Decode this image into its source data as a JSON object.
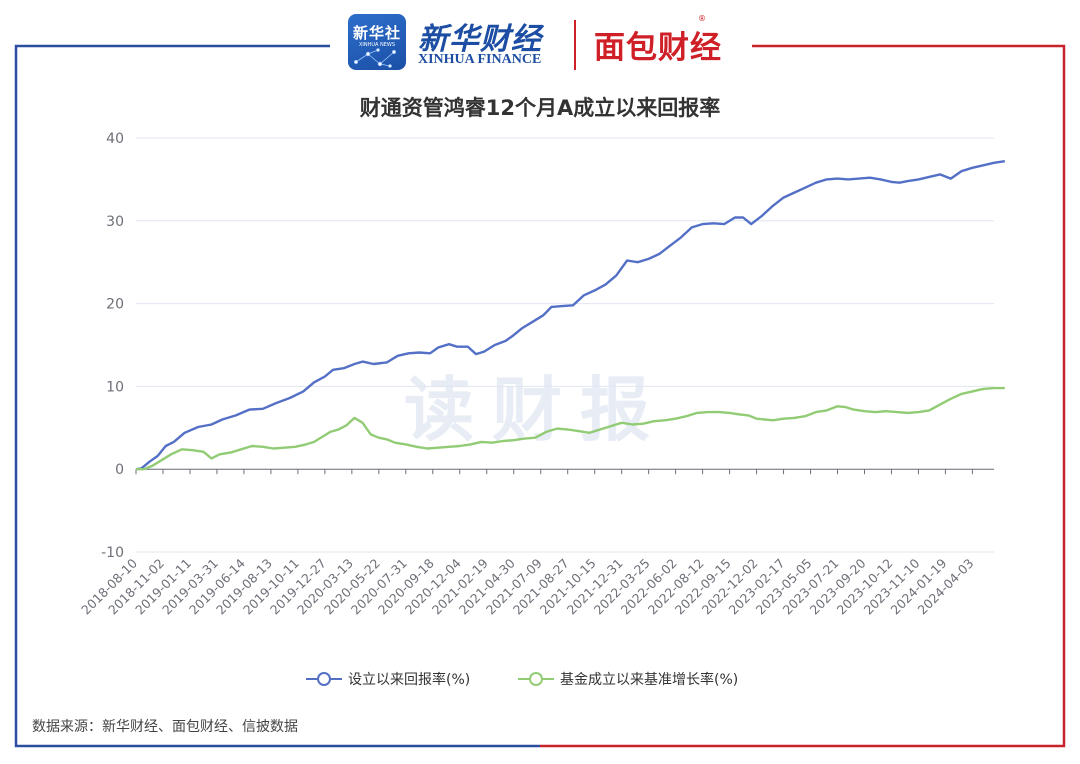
{
  "header": {
    "xinhua_badge_text": "新华社",
    "xinhua_badge_sub": "XINHUA NEWS",
    "xinhua_finance_cn": "新华财经",
    "xinhua_finance_en": "XINHUA FINANCE",
    "mianbao_logo": "面包财经"
  },
  "watermark": "读财报",
  "source": "数据来源：新华财经、面包财经、信披数据",
  "colors": {
    "left_border": "#2b4ea0",
    "right_border": "#c8222b",
    "series1": "#5470c6",
    "series2": "#91cc75"
  },
  "chart_data": {
    "type": "line",
    "title": "财通资管鸿睿12个月A成立以来回报率",
    "xlabel": "",
    "ylabel": "",
    "ylim": [
      -10,
      40
    ],
    "yticks": [
      -10,
      0,
      10,
      20,
      30,
      40
    ],
    "grid": true,
    "legend_position": "bottom-center",
    "x_tick_labels": [
      "2018-08-10",
      "2018-11-02",
      "2019-01-11",
      "2019-03-31",
      "2019-06-14",
      "2019-08-13",
      "2019-10-11",
      "2019-12-27",
      "2020-03-13",
      "2020-05-22",
      "2020-07-31",
      "2020-09-18",
      "2020-12-04",
      "2021-02-19",
      "2021-04-30",
      "2021-07-09",
      "2021-08-27",
      "2021-10-15",
      "2021-12-31",
      "2022-03-25",
      "2022-06-02",
      "2022-08-12",
      "2022-09-15",
      "2022-12-02",
      "2023-02-17",
      "2023-05-05",
      "2023-07-21",
      "2023-09-20",
      "2023-10-12",
      "2023-11-10",
      "2024-01-19",
      "2024-04-03"
    ],
    "series": [
      {
        "name": "设立以来回报率(%)",
        "values": [
          [
            0,
            0
          ],
          [
            0.2,
            0.1
          ],
          [
            0.5,
            0.9
          ],
          [
            0.8,
            1.6
          ],
          [
            1.1,
            2.8
          ],
          [
            1.4,
            3.3
          ],
          [
            1.8,
            4.4
          ],
          [
            2.3,
            5.1
          ],
          [
            2.8,
            5.4
          ],
          [
            3.2,
            6.0
          ],
          [
            3.7,
            6.5
          ],
          [
            4.2,
            7.2
          ],
          [
            4.7,
            7.3
          ],
          [
            5.2,
            8.0
          ],
          [
            5.7,
            8.6
          ],
          [
            6.2,
            9.4
          ],
          [
            6.6,
            10.5
          ],
          [
            7.0,
            11.2
          ],
          [
            7.3,
            12.0
          ],
          [
            7.7,
            12.2
          ],
          [
            8.1,
            12.7
          ],
          [
            8.4,
            13.0
          ],
          [
            8.8,
            12.7
          ],
          [
            9.3,
            12.9
          ],
          [
            9.7,
            13.7
          ],
          [
            10.1,
            14.0
          ],
          [
            10.5,
            14.1
          ],
          [
            10.9,
            14.0
          ],
          [
            11.2,
            14.7
          ],
          [
            11.6,
            15.1
          ],
          [
            11.9,
            14.8
          ],
          [
            12.3,
            14.8
          ],
          [
            12.6,
            13.9
          ],
          [
            12.9,
            14.2
          ],
          [
            13.3,
            15.0
          ],
          [
            13.7,
            15.5
          ],
          [
            14.0,
            16.2
          ],
          [
            14.3,
            17.0
          ],
          [
            14.7,
            17.8
          ],
          [
            15.1,
            18.6
          ],
          [
            15.4,
            19.6
          ],
          [
            15.8,
            19.7
          ],
          [
            16.2,
            19.8
          ],
          [
            16.6,
            21.0
          ],
          [
            17.0,
            21.6
          ],
          [
            17.4,
            22.3
          ],
          [
            17.8,
            23.4
          ],
          [
            18.2,
            25.2
          ],
          [
            18.6,
            25.0
          ],
          [
            19.0,
            25.4
          ],
          [
            19.4,
            26.0
          ],
          [
            19.8,
            27.0
          ],
          [
            20.2,
            28.0
          ],
          [
            20.6,
            29.2
          ],
          [
            21.0,
            29.6
          ],
          [
            21.4,
            29.7
          ],
          [
            21.8,
            29.6
          ],
          [
            22.2,
            30.4
          ],
          [
            22.5,
            30.4
          ],
          [
            22.8,
            29.6
          ],
          [
            23.2,
            30.6
          ],
          [
            23.6,
            31.8
          ],
          [
            24.0,
            32.8
          ],
          [
            24.4,
            33.4
          ],
          [
            24.8,
            34.0
          ],
          [
            25.2,
            34.6
          ],
          [
            25.6,
            35.0
          ],
          [
            26.0,
            35.1
          ],
          [
            26.4,
            35.0
          ],
          [
            26.8,
            35.1
          ],
          [
            27.2,
            35.2
          ],
          [
            27.6,
            35.0
          ],
          [
            28.0,
            34.7
          ],
          [
            28.3,
            34.6
          ],
          [
            28.6,
            34.8
          ],
          [
            29.0,
            35.0
          ],
          [
            29.4,
            35.3
          ],
          [
            29.8,
            35.6
          ],
          [
            30.2,
            35.1
          ],
          [
            30.6,
            36.0
          ],
          [
            31.0,
            36.4
          ],
          [
            31.4,
            36.7
          ],
          [
            31.8,
            37.0
          ],
          [
            32.2,
            37.2
          ]
        ]
      },
      {
        "name": "基金成立以来基准增长率(%)",
        "values": [
          [
            0,
            0
          ],
          [
            0.3,
            0
          ],
          [
            0.6,
            0.4
          ],
          [
            1.0,
            1.2
          ],
          [
            1.3,
            1.8
          ],
          [
            1.7,
            2.4
          ],
          [
            2.1,
            2.3
          ],
          [
            2.5,
            2.1
          ],
          [
            2.8,
            1.3
          ],
          [
            3.1,
            1.8
          ],
          [
            3.5,
            2.0
          ],
          [
            3.9,
            2.4
          ],
          [
            4.3,
            2.8
          ],
          [
            4.7,
            2.7
          ],
          [
            5.1,
            2.5
          ],
          [
            5.5,
            2.6
          ],
          [
            5.9,
            2.7
          ],
          [
            6.3,
            3.0
          ],
          [
            6.6,
            3.3
          ],
          [
            6.9,
            3.9
          ],
          [
            7.2,
            4.5
          ],
          [
            7.5,
            4.8
          ],
          [
            7.8,
            5.3
          ],
          [
            8.1,
            6.2
          ],
          [
            8.4,
            5.6
          ],
          [
            8.7,
            4.2
          ],
          [
            9.0,
            3.8
          ],
          [
            9.3,
            3.6
          ],
          [
            9.6,
            3.2
          ],
          [
            10.0,
            3.0
          ],
          [
            10.4,
            2.7
          ],
          [
            10.8,
            2.5
          ],
          [
            11.2,
            2.6
          ],
          [
            11.6,
            2.7
          ],
          [
            12.0,
            2.8
          ],
          [
            12.4,
            3.0
          ],
          [
            12.8,
            3.3
          ],
          [
            13.2,
            3.2
          ],
          [
            13.6,
            3.4
          ],
          [
            14.0,
            3.5
          ],
          [
            14.4,
            3.7
          ],
          [
            14.8,
            3.8
          ],
          [
            15.2,
            4.5
          ],
          [
            15.6,
            4.9
          ],
          [
            16.0,
            4.8
          ],
          [
            16.4,
            4.6
          ],
          [
            16.8,
            4.4
          ],
          [
            17.2,
            4.8
          ],
          [
            17.6,
            5.2
          ],
          [
            18.0,
            5.6
          ],
          [
            18.4,
            5.4
          ],
          [
            18.8,
            5.5
          ],
          [
            19.2,
            5.8
          ],
          [
            19.6,
            5.9
          ],
          [
            20.0,
            6.1
          ],
          [
            20.4,
            6.4
          ],
          [
            20.8,
            6.8
          ],
          [
            21.2,
            6.9
          ],
          [
            21.6,
            6.9
          ],
          [
            22.0,
            6.8
          ],
          [
            22.4,
            6.6
          ],
          [
            22.7,
            6.5
          ],
          [
            23.0,
            6.1
          ],
          [
            23.3,
            6.0
          ],
          [
            23.6,
            5.9
          ],
          [
            24.0,
            6.1
          ],
          [
            24.4,
            6.2
          ],
          [
            24.8,
            6.4
          ],
          [
            25.2,
            6.9
          ],
          [
            25.6,
            7.1
          ],
          [
            26.0,
            7.6
          ],
          [
            26.3,
            7.5
          ],
          [
            26.6,
            7.2
          ],
          [
            27.0,
            7.0
          ],
          [
            27.4,
            6.9
          ],
          [
            27.8,
            7.0
          ],
          [
            28.2,
            6.9
          ],
          [
            28.6,
            6.8
          ],
          [
            29.0,
            6.9
          ],
          [
            29.4,
            7.1
          ],
          [
            29.8,
            7.8
          ],
          [
            30.2,
            8.5
          ],
          [
            30.6,
            9.1
          ],
          [
            31.0,
            9.4
          ],
          [
            31.4,
            9.7
          ],
          [
            31.8,
            9.8
          ],
          [
            32.2,
            9.8
          ]
        ]
      }
    ]
  }
}
